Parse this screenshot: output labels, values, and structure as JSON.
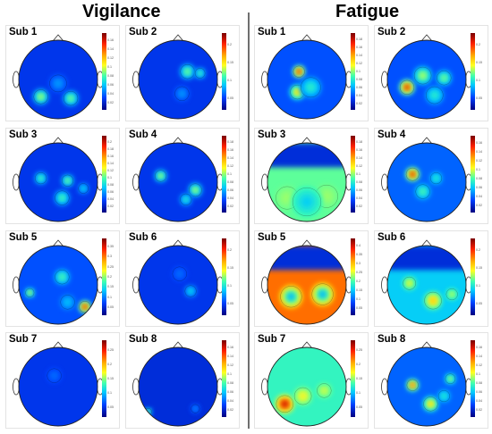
{
  "titles": {
    "left": "Vigilance",
    "right": "Fatigue"
  },
  "colormap": [
    "#000080",
    "#0040ff",
    "#00c8ff",
    "#40ffb0",
    "#ffff20",
    "#ffb000",
    "#ff2000",
    "#7a0000"
  ],
  "head_background": "#1a2ad8",
  "panels": [
    {
      "id": "v1",
      "group": "vigilance",
      "label": "Sub 1",
      "col": 0,
      "row": 0,
      "base": 0.12,
      "blobs": [
        [
          0.28,
          0.72,
          0.1,
          0.55
        ],
        [
          0.66,
          0.74,
          0.1,
          0.5
        ],
        [
          0.5,
          0.55,
          0.12,
          0.25
        ]
      ],
      "ticks": [
        "0.16",
        "0.14",
        "0.12",
        "0.1",
        "0.08",
        "0.06",
        "0.04",
        "0.02"
      ]
    },
    {
      "id": "v2",
      "group": "vigilance",
      "label": "Sub 2",
      "col": 1,
      "row": 0,
      "base": 0.12,
      "blobs": [
        [
          0.62,
          0.4,
          0.1,
          0.5
        ],
        [
          0.78,
          0.42,
          0.07,
          0.45
        ],
        [
          0.55,
          0.68,
          0.1,
          0.25
        ]
      ],
      "ticks": [
        "0.2",
        "0.15",
        "0.1",
        "0.05"
      ]
    },
    {
      "id": "f1",
      "group": "fatigue",
      "label": "Sub 1",
      "col": 2,
      "row": 0,
      "base": 0.16,
      "blobs": [
        [
          0.4,
          0.4,
          0.08,
          0.95
        ],
        [
          0.38,
          0.66,
          0.1,
          0.7
        ],
        [
          0.55,
          0.6,
          0.14,
          0.4
        ]
      ],
      "ticks": [
        "0.18",
        "0.16",
        "0.14",
        "0.12",
        "0.1",
        "0.08",
        "0.06",
        "0.04",
        "0.02"
      ]
    },
    {
      "id": "f2",
      "group": "fatigue",
      "label": "Sub 2",
      "col": 3,
      "row": 0,
      "base": 0.16,
      "blobs": [
        [
          0.25,
          0.6,
          0.1,
          0.95
        ],
        [
          0.45,
          0.45,
          0.12,
          0.55
        ],
        [
          0.72,
          0.48,
          0.1,
          0.5
        ],
        [
          0.6,
          0.7,
          0.12,
          0.4
        ]
      ],
      "ticks": [
        "0.2",
        "0.15",
        "0.1",
        "0.05"
      ]
    },
    {
      "id": "v3",
      "group": "vigilance",
      "label": "Sub 3",
      "col": 0,
      "row": 1,
      "base": 0.12,
      "blobs": [
        [
          0.28,
          0.45,
          0.08,
          0.45
        ],
        [
          0.62,
          0.48,
          0.08,
          0.5
        ],
        [
          0.55,
          0.7,
          0.1,
          0.45
        ],
        [
          0.82,
          0.58,
          0.07,
          0.35
        ]
      ],
      "ticks": [
        "0.2",
        "0.18",
        "0.16",
        "0.14",
        "0.12",
        "0.1",
        "0.08",
        "0.06",
        "0.04",
        "0.02"
      ]
    },
    {
      "id": "v4",
      "group": "vigilance",
      "label": "Sub 4",
      "col": 1,
      "row": 1,
      "base": 0.12,
      "blobs": [
        [
          0.28,
          0.42,
          0.08,
          0.55
        ],
        [
          0.72,
          0.6,
          0.09,
          0.55
        ],
        [
          0.6,
          0.72,
          0.08,
          0.4
        ]
      ],
      "ticks": [
        "0.18",
        "0.16",
        "0.14",
        "0.12",
        "0.1",
        "0.08",
        "0.06",
        "0.04",
        "0.02"
      ]
    },
    {
      "id": "f3",
      "group": "fatigue",
      "label": "Sub 3",
      "col": 2,
      "row": 1,
      "base": 0.45,
      "top_cold": true,
      "blobs": [
        [
          0.25,
          0.7,
          0.16,
          0.5
        ],
        [
          0.75,
          0.68,
          0.16,
          0.5
        ],
        [
          0.5,
          0.75,
          0.2,
          0.3
        ]
      ],
      "ticks": [
        "0.18",
        "0.16",
        "0.14",
        "0.12",
        "0.1",
        "0.08",
        "0.06",
        "0.04",
        "0.02"
      ]
    },
    {
      "id": "f4",
      "group": "fatigue",
      "label": "Sub 4",
      "col": 3,
      "row": 1,
      "base": 0.18,
      "blobs": [
        [
          0.32,
          0.4,
          0.09,
          0.95
        ],
        [
          0.45,
          0.62,
          0.1,
          0.45
        ],
        [
          0.62,
          0.45,
          0.08,
          0.4
        ]
      ],
      "ticks": [
        "0.16",
        "0.14",
        "0.12",
        "0.1",
        "0.08",
        "0.06",
        "0.04",
        "0.02"
      ]
    },
    {
      "id": "v5",
      "group": "vigilance",
      "label": "Sub 5",
      "col": 0,
      "row": 2,
      "base": 0.16,
      "blobs": [
        [
          0.14,
          0.6,
          0.06,
          0.6
        ],
        [
          0.55,
          0.4,
          0.1,
          0.45
        ],
        [
          0.84,
          0.78,
          0.08,
          0.95
        ],
        [
          0.62,
          0.72,
          0.1,
          0.3
        ]
      ],
      "ticks": [
        "0.35",
        "0.3",
        "0.25",
        "0.2",
        "0.15",
        "0.1",
        "0.05"
      ]
    },
    {
      "id": "v6",
      "group": "vigilance",
      "label": "Sub 6",
      "col": 1,
      "row": 2,
      "base": 0.12,
      "blobs": [
        [
          0.66,
          0.58,
          0.08,
          0.35
        ],
        [
          0.52,
          0.36,
          0.1,
          0.2
        ]
      ],
      "ticks": [
        "0.2",
        "0.15",
        "0.1",
        "0.05"
      ]
    },
    {
      "id": "f5",
      "group": "fatigue",
      "label": "Sub 5",
      "col": 2,
      "row": 2,
      "base": 0.78,
      "top_cold": true,
      "blobs": [
        [
          0.3,
          0.65,
          0.15,
          0.25
        ],
        [
          0.7,
          0.62,
          0.15,
          0.25
        ]
      ],
      "ticks": [
        "0.4",
        "0.35",
        "0.3",
        "0.25",
        "0.2",
        "0.15",
        "0.1",
        "0.05"
      ]
    },
    {
      "id": "f6",
      "group": "fatigue",
      "label": "Sub 6",
      "col": 3,
      "row": 2,
      "base": 0.3,
      "top_cold": true,
      "blobs": [
        [
          0.28,
          0.48,
          0.09,
          0.6
        ],
        [
          0.58,
          0.7,
          0.12,
          0.7
        ],
        [
          0.82,
          0.62,
          0.08,
          0.55
        ]
      ],
      "ticks": [
        "0.2",
        "0.15",
        "0.1",
        "0.05"
      ]
    },
    {
      "id": "v7",
      "group": "vigilance",
      "label": "Sub 7",
      "col": 0,
      "row": 3,
      "base": 0.12,
      "blobs": [
        [
          0.45,
          0.36,
          0.1,
          0.2
        ]
      ],
      "ticks": [
        "0.25",
        "0.2",
        "0.15",
        "0.1",
        "0.05"
      ]
    },
    {
      "id": "v8",
      "group": "vigilance",
      "label": "Sub 8",
      "col": 1,
      "row": 3,
      "base": 0.1,
      "blobs": [
        [
          0.12,
          0.82,
          0.05,
          0.55
        ],
        [
          0.72,
          0.78,
          0.06,
          0.25
        ]
      ],
      "ticks": [
        "0.16",
        "0.14",
        "0.12",
        "0.1",
        "0.08",
        "0.06",
        "0.04",
        "0.02"
      ]
    },
    {
      "id": "f7",
      "group": "fatigue",
      "label": "Sub 7",
      "col": 2,
      "row": 3,
      "base": 0.4,
      "blobs": [
        [
          0.22,
          0.72,
          0.12,
          0.95
        ],
        [
          0.45,
          0.62,
          0.12,
          0.6
        ],
        [
          0.72,
          0.55,
          0.1,
          0.55
        ]
      ],
      "ticks": [
        "0.25",
        "0.2",
        "0.15",
        "0.1",
        "0.05"
      ]
    },
    {
      "id": "f8",
      "group": "fatigue",
      "label": "Sub 8",
      "col": 3,
      "row": 3,
      "base": 0.18,
      "blobs": [
        [
          0.32,
          0.48,
          0.08,
          0.85
        ],
        [
          0.55,
          0.72,
          0.1,
          0.7
        ],
        [
          0.8,
          0.4,
          0.07,
          0.55
        ],
        [
          0.72,
          0.62,
          0.08,
          0.4
        ]
      ],
      "ticks": [
        "0.16",
        "0.14",
        "0.12",
        "0.1",
        "0.08",
        "0.06",
        "0.04",
        "0.02"
      ]
    }
  ]
}
